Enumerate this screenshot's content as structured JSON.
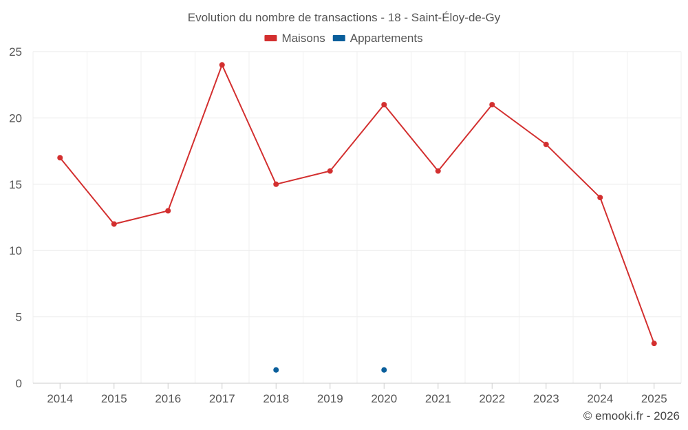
{
  "chart_data": {
    "type": "line",
    "title": "Evolution du nombre de transactions - 18 - Saint-Éloy-de-Gy",
    "categories": [
      "2014",
      "2015",
      "2016",
      "2017",
      "2018",
      "2019",
      "2020",
      "2021",
      "2022",
      "2023",
      "2024",
      "2025"
    ],
    "series": [
      {
        "name": "Maisons",
        "color": "#d32f2f",
        "values": [
          17,
          12,
          13,
          24,
          15,
          16,
          21,
          16,
          21,
          18,
          14,
          3
        ]
      },
      {
        "name": "Appartements",
        "color": "#0a5e9b",
        "values": [
          null,
          null,
          null,
          null,
          1,
          null,
          1,
          null,
          null,
          null,
          null,
          null
        ]
      }
    ],
    "ylim": [
      0,
      25
    ],
    "yticks": [
      0,
      5,
      10,
      15,
      20,
      25
    ],
    "xlabel": "",
    "ylabel": "",
    "grid": true,
    "legend_position": "top-center"
  },
  "credit": "© emooki.fr - 2026"
}
